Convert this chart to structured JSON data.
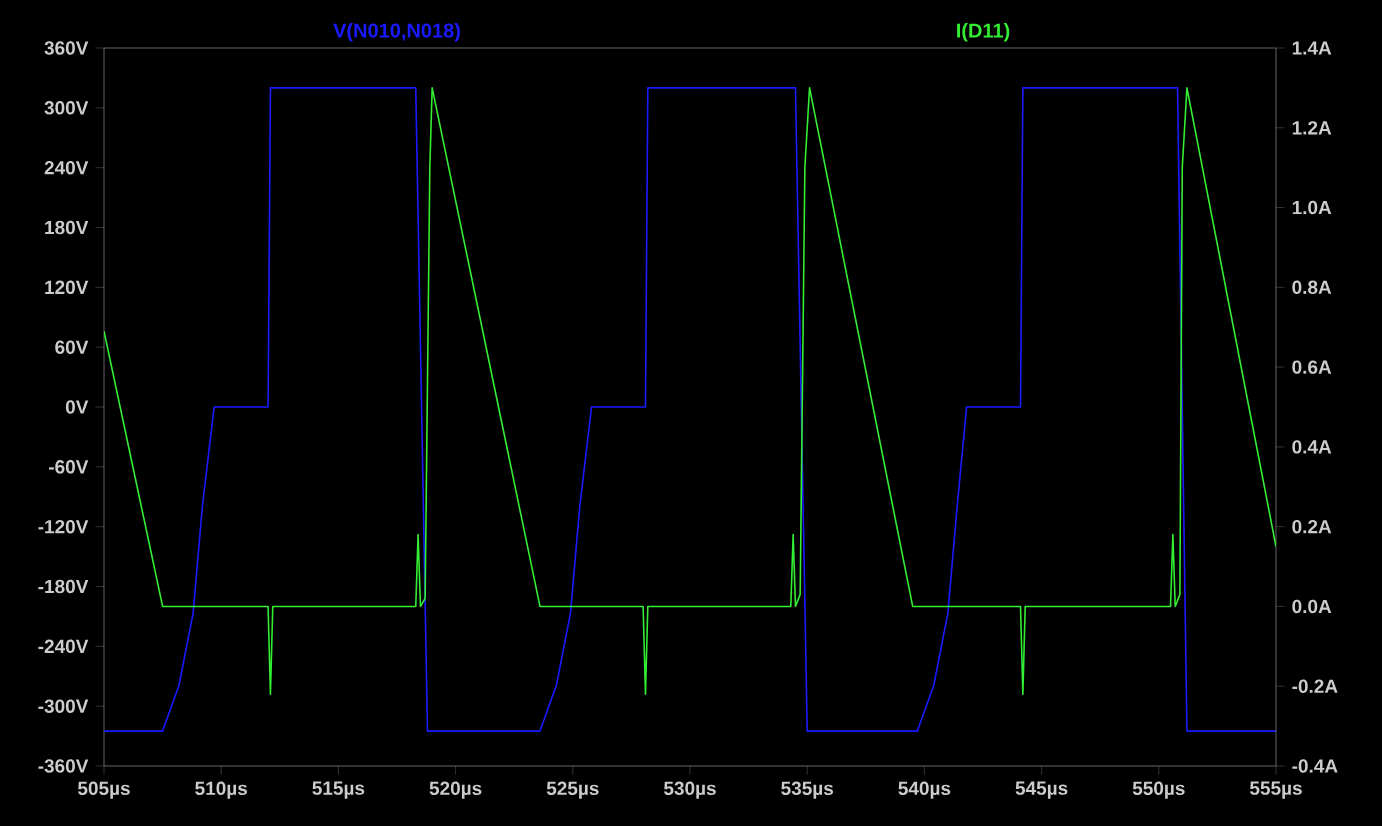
{
  "chart_data": {
    "type": "line",
    "x": [
      505,
      507.5,
      508.2,
      508.8,
      509.2,
      509.7,
      512.0,
      512.1,
      518.3,
      518.8,
      523.6,
      524.3,
      524.9,
      525.3,
      525.8,
      528.1,
      528.2,
      534.5,
      535.0,
      539.7,
      540.4,
      541.0,
      541.4,
      541.8,
      544.1,
      544.2,
      550.8,
      551.2,
      555
    ],
    "series": [
      {
        "name": "V(N010,N018)",
        "color": "#1a1aff",
        "axis": "y",
        "values": [
          -325,
          -325,
          -279,
          -207,
          -99,
          0,
          0,
          320,
          320,
          -325,
          -325,
          -279,
          -207,
          -99,
          0,
          0,
          320,
          320,
          -325,
          -325,
          -279,
          -207,
          -99,
          0,
          0,
          320,
          320,
          -325,
          -325
        ]
      },
      {
        "name": "I(D11)",
        "color": "#33ee33",
        "axis": "y2",
        "x": [
          505,
          507.5,
          512.0,
          512.1,
          512.2,
          518.3,
          518.4,
          518.5,
          518.7,
          518.9,
          519.0,
          523.6,
          528.0,
          528.1,
          528.2,
          534.3,
          534.4,
          534.5,
          534.7,
          534.9,
          535.1,
          539.5,
          544.1,
          544.2,
          544.3,
          550.5,
          550.6,
          550.7,
          550.9,
          551.0,
          551.2,
          555
        ],
        "values": [
          0.69,
          0,
          0,
          -0.22,
          0,
          0,
          0.18,
          0,
          0.02,
          1.1,
          1.3,
          0,
          0,
          -0.22,
          0,
          0,
          0.18,
          0,
          0.03,
          1.1,
          1.3,
          0,
          0,
          -0.22,
          0,
          0,
          0.18,
          0,
          0.03,
          1.1,
          1.3,
          0.15
        ]
      }
    ],
    "xlim": [
      505,
      555
    ],
    "xticks": [
      {
        "value": 505,
        "label": "505µs"
      },
      {
        "value": 510,
        "label": "510µs"
      },
      {
        "value": 515,
        "label": "515µs"
      },
      {
        "value": 520,
        "label": "520µs"
      },
      {
        "value": 525,
        "label": "525µs"
      },
      {
        "value": 530,
        "label": "530µs"
      },
      {
        "value": 535,
        "label": "535µs"
      },
      {
        "value": 540,
        "label": "540µs"
      },
      {
        "value": 545,
        "label": "545µs"
      },
      {
        "value": 550,
        "label": "550µs"
      },
      {
        "value": 555,
        "label": "555µs"
      }
    ],
    "ylim": [
      -360,
      360
    ],
    "yticks": [
      {
        "value": -360,
        "label": "-360V"
      },
      {
        "value": -300,
        "label": "-300V"
      },
      {
        "value": -240,
        "label": "-240V"
      },
      {
        "value": -180,
        "label": "-180V"
      },
      {
        "value": -120,
        "label": "-120V"
      },
      {
        "value": -60,
        "label": "-60V"
      },
      {
        "value": 0,
        "label": "0V"
      },
      {
        "value": 60,
        "label": "60V"
      },
      {
        "value": 120,
        "label": "120V"
      },
      {
        "value": 180,
        "label": "180V"
      },
      {
        "value": 240,
        "label": "240V"
      },
      {
        "value": 300,
        "label": "300V"
      },
      {
        "value": 360,
        "label": "360V"
      }
    ],
    "y2lim": [
      -0.4,
      1.4
    ],
    "y2ticks": [
      {
        "value": -0.4,
        "label": "-0.4A"
      },
      {
        "value": -0.2,
        "label": "-0.2A"
      },
      {
        "value": 0,
        "label": "0.0A"
      },
      {
        "value": 0.2,
        "label": "0.2A"
      },
      {
        "value": 0.4,
        "label": "0.4A"
      },
      {
        "value": 0.6,
        "label": "0.6A"
      },
      {
        "value": 0.8,
        "label": "0.8A"
      },
      {
        "value": 1.0,
        "label": "1.0A"
      },
      {
        "value": 1.2,
        "label": "1.2A"
      },
      {
        "value": 1.4,
        "label": "1.4A"
      }
    ],
    "grid": false
  }
}
